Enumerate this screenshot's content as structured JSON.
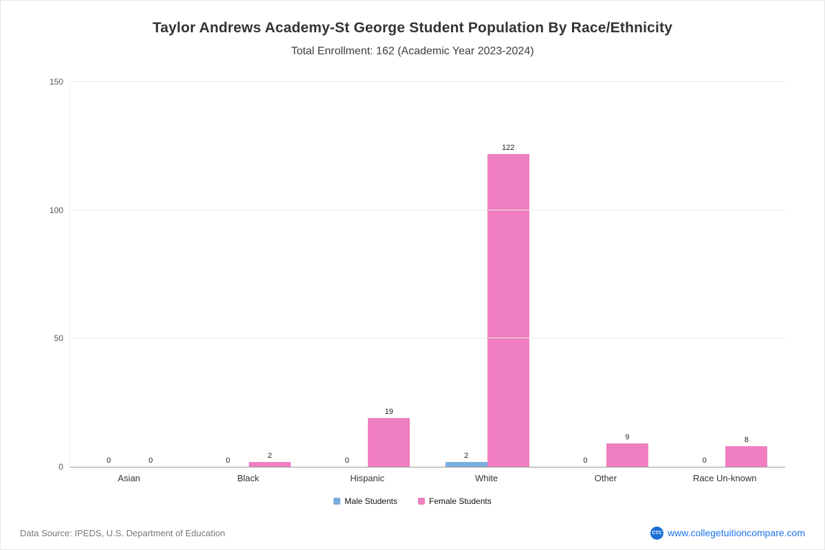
{
  "header": {
    "title": "Taylor Andrews Academy-St George Student Population By Race/Ethnicity",
    "subtitle": "Total Enrollment: 162 (Academic Year 2023-2024)"
  },
  "chart_data": {
    "type": "bar",
    "categories": [
      "Asian",
      "Black",
      "Hispanic",
      "White",
      "Other",
      "Race Un-known"
    ],
    "series": [
      {
        "name": "Male Students",
        "color": "#7aaede",
        "values": [
          0,
          0,
          0,
          2,
          0,
          0
        ]
      },
      {
        "name": "Female Students",
        "color": "#ef7fc0",
        "values": [
          0,
          2,
          19,
          122,
          9,
          8
        ]
      }
    ],
    "title": "Taylor Andrews Academy-St George Student Population By Race/Ethnicity",
    "xlabel": "",
    "ylabel": "",
    "ylim": [
      0,
      150
    ],
    "yticks": [
      0,
      50,
      100,
      150
    ],
    "grid": true,
    "legend_position": "bottom"
  },
  "legend": {
    "items": [
      {
        "label": "Male Students",
        "color": "#7aaede"
      },
      {
        "label": "Female Students",
        "color": "#ef7fc0"
      }
    ]
  },
  "footer": {
    "source": "Data Source: IPEDS, U.S. Department of Education",
    "icon_text": "CTC",
    "site": "www.collegetuitioncompare.com"
  }
}
